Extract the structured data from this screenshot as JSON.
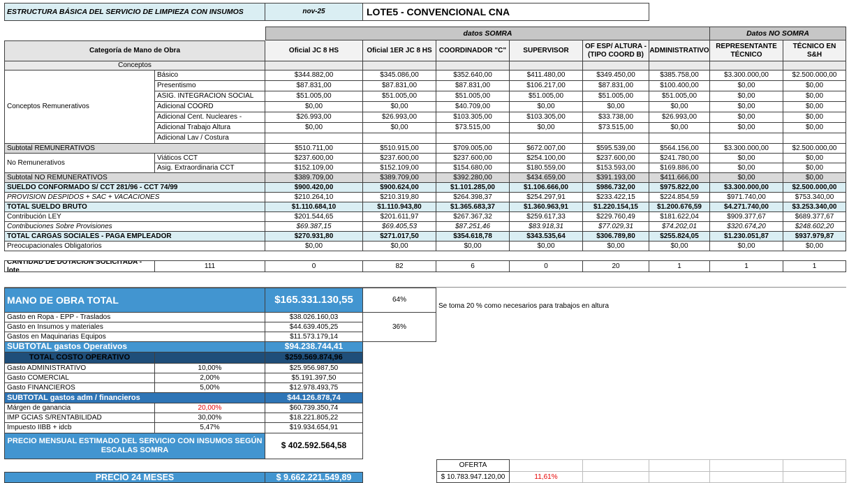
{
  "title_bar": {
    "title": "ESTRUCTURA BÁSICA DEL SERVICIO DE LIMPIEZA CON INSUMOS",
    "period": "nov-25",
    "lot": "LOTE5 - CONVENCIONAL CNA"
  },
  "bands": {
    "somra": "datos SOMRA",
    "no_somra": "Datos NO SOMRA"
  },
  "main_table": {
    "category_header": "Categoría de Mano de Obra",
    "conceptos_header": "Conceptos",
    "columns": [
      "Oficial JC 8 HS",
      "Oficial 1ER JC 8 HS",
      "COORDINADOR \"C\"",
      "SUPERVISOR",
      "OF ESP/ ALTURA - (TIPO COORD B)",
      "ADMINISTRATIVO",
      "REPRESENTANTE TÉCNICO",
      "TÉCNICO EN S&H"
    ],
    "groups": [
      {
        "label": "Conceptos Remunerativos",
        "rows": 7
      },
      {
        "label": "No Remunerativos",
        "rows": 2
      }
    ],
    "rows": [
      {
        "kind": "concept",
        "member": true,
        "label": "Básico",
        "values": [
          "$344.882,00",
          "$345.086,00",
          "$352.640,00",
          "$411.480,00",
          "$349.450,00",
          "$385.758,00",
          "$3.300.000,00",
          "$2.500.000,00"
        ]
      },
      {
        "kind": "concept",
        "member": true,
        "label": "Presentismo",
        "values": [
          "$87.831,00",
          "$87.831,00",
          "$87.831,00",
          "$106.217,00",
          "$87.831,00",
          "$100.400,00",
          "$0,00",
          "$0,00"
        ]
      },
      {
        "kind": "concept",
        "member": true,
        "label": "ASIG. INTEGRACION SOCIAL",
        "values": [
          "$51.005,00",
          "$51.005,00",
          "$51.005,00",
          "$51.005,00",
          "$51.005,00",
          "$51.005,00",
          "$0,00",
          "$0,00"
        ]
      },
      {
        "kind": "concept",
        "member": true,
        "label": "Adicional  COORD",
        "values": [
          "$0,00",
          "$0,00",
          "$40.709,00",
          "$0,00",
          "$0,00",
          "$0,00",
          "$0,00",
          "$0,00"
        ]
      },
      {
        "kind": "concept",
        "member": true,
        "label": "Adicional  Cent. Nucleares -",
        "values": [
          "$26.993,00",
          "$26.993,00",
          "$103.305,00",
          "$103.305,00",
          "$33.738,00",
          "$26.993,00",
          "$0,00",
          "$0,00"
        ]
      },
      {
        "kind": "concept",
        "member": true,
        "label": "Adicional Trabajo Altura",
        "values": [
          "$0,00",
          "$0,00",
          "$73.515,00",
          "$0,00",
          "$73.515,00",
          "$0,00",
          "$0,00",
          "$0,00"
        ]
      },
      {
        "kind": "concept",
        "member": true,
        "label": "Adicional Lav / Costura",
        "values": [
          "",
          "",
          "",
          "",
          "",
          "",
          "",
          ""
        ]
      },
      {
        "kind": "subtotal",
        "label": "Subtotal REMUNERATIVOS",
        "values": [
          "$510.711,00",
          "$510.915,00",
          "$709.005,00",
          "$672.007,00",
          "$595.539,00",
          "$564.156,00",
          "$3.300.000,00",
          "$2.500.000,00"
        ]
      },
      {
        "kind": "concept",
        "member": true,
        "label": "Viáticos CCT",
        "values": [
          "$237.600,00",
          "$237.600,00",
          "$237.600,00",
          "$254.100,00",
          "$237.600,00",
          "$241.780,00",
          "$0,00",
          "$0,00"
        ]
      },
      {
        "kind": "concept",
        "member": true,
        "label": "Asig. Extraordinaria CCT",
        "values": [
          "$152.109,00",
          "$152.109,00",
          "$154.680,00",
          "$180.559,00",
          "$153.593,00",
          "$169.886,00",
          "$0,00",
          "$0,00"
        ]
      },
      {
        "kind": "subtotal-shaded",
        "label": "Subtotal NO REMUNERATIVOS",
        "values": [
          "$389.709,00",
          "$389.709,00",
          "$392.280,00",
          "$434.659,00",
          "$391.193,00",
          "$411.666,00",
          "$0,00",
          "$0,00"
        ]
      },
      {
        "kind": "total-blue",
        "label": "SUELDO CONFORMADO S/ CCT 281/96 - CCT 74/99",
        "values": [
          "$900.420,00",
          "$900.624,00",
          "$1.101.285,00",
          "$1.106.666,00",
          "$986.732,00",
          "$975.822,00",
          "$3.300.000,00",
          "$2.500.000,00"
        ]
      },
      {
        "kind": "italic-label",
        "label": "PROVISION DESPIDOS + SAC + VACACIONES",
        "values": [
          "$210.264,10",
          "$210.319,80",
          "$264.398,37",
          "$254.297,91",
          "$233.422,15",
          "$224.854,59",
          "$971.740,00",
          "$753.340,00"
        ]
      },
      {
        "kind": "total-blue",
        "label": "TOTAL SUELDO BRUTO",
        "values": [
          "$1.110.684,10",
          "$1.110.943,80",
          "$1.365.683,37",
          "$1.360.963,91",
          "$1.220.154,15",
          "$1.200.676,59",
          "$4.271.740,00",
          "$3.253.340,00"
        ]
      },
      {
        "kind": "plain",
        "label": "Contribución LEY",
        "values": [
          "$201.544,65",
          "$201.611,97",
          "$267.367,32",
          "$259.617,33",
          "$229.760,49",
          "$181.622,04",
          "$909.377,67",
          "$689.377,67"
        ]
      },
      {
        "kind": "italic-both",
        "label": "Contribuciones Sobre Provisiones",
        "values": [
          "$69.387,15",
          "$69.405,53",
          "$87.251,46",
          "$83.918,31",
          "$77.029,31",
          "$74.202,01",
          "$320.674,20",
          "$248.602,20"
        ]
      },
      {
        "kind": "total-blue",
        "label": "TOTAL CARGAS SOCIALES - PAGA EMPLEADOR",
        "values": [
          "$270.931,80",
          "$271.017,50",
          "$354.618,78",
          "$343.535,64",
          "$306.789,80",
          "$255.824,05",
          "$1.230.051,87",
          "$937.979,87"
        ]
      },
      {
        "kind": "plain",
        "label": "Preocupacionales Obligatorios",
        "values": [
          "$0,00",
          "$0,00",
          "$0,00",
          "$0,00",
          "$0,00",
          "$0,00",
          "$0,00",
          "$0,00"
        ]
      }
    ],
    "dotacion": {
      "label": "CANTIDAD DE DOTACION SOLICITADA - lote",
      "total": "111",
      "values": [
        "0",
        "82",
        "6",
        "0",
        "20",
        "1",
        "1",
        "1"
      ]
    }
  },
  "costs": {
    "rows": [
      {
        "kind": "mano",
        "label": "MANO DE OBRA TOTAL",
        "value": "$165.331.130,55"
      },
      {
        "kind": "gasto",
        "label": "Gasto en Ropa - EPP - Traslados",
        "value": "$38.026.160,03"
      },
      {
        "kind": "gasto",
        "label": "Gasto en  Insumos y materiales",
        "value": "$44.639.405,25"
      },
      {
        "kind": "gasto",
        "label": "Gastos en Maquinarias Equipos",
        "value": "$11.573.179,14"
      },
      {
        "kind": "sub-blue",
        "label": "SUBTOTAL gastos Operativos",
        "value": "$94.238.744,41"
      },
      {
        "kind": "total-dark",
        "label": "TOTAL COSTO OPERATIVO",
        "value": "$259.569.874,96"
      },
      {
        "kind": "pct-row",
        "label": "Gasto ADMINISTRATIVO",
        "pct": "10,00%",
        "value": "$25.956.987,50"
      },
      {
        "kind": "pct-row",
        "label": "Gasto COMERCIAL",
        "pct": "2,00%",
        "value": "$5.191.397,50"
      },
      {
        "kind": "pct-row",
        "label": "Gasto FINANCIEROS",
        "pct": "5,00%",
        "value": "$12.978.493,75"
      },
      {
        "kind": "sub-blue2",
        "label": "SUBTOTAL gastos adm / financieros",
        "value": "$44.126.878,74"
      },
      {
        "kind": "pct-row-red",
        "label": "Márgen de ganancia",
        "pct": "20,00%",
        "value": "$60.739.350,74"
      },
      {
        "kind": "pct-row",
        "label": "IMP GCIAS S/RENTABILIDAD",
        "pct": "30,00%",
        "value": "$18.221.805,22"
      },
      {
        "kind": "pct-row",
        "label": "Impuesto  IIBB + idcb",
        "pct": "5,47%",
        "value": "$19.934.654,91"
      },
      {
        "kind": "precio-mensual",
        "label": "PRECIO MENSUAL ESTIMADO DEL SERVICIO CON INSUMOS SEGÚN ESCALAS SOMRA",
        "value": "$ 402.592.564,58"
      },
      {
        "kind": "precio24",
        "label": "PRECIO 24 MESES",
        "value": "$ 9.662.221.549,89"
      }
    ]
  },
  "notes": {
    "altura": "Se toma 20 % como necesarios para trabajos en altura",
    "pct_mano": "64%",
    "pct_gastos": "36%"
  },
  "oferta": {
    "label": "OFERTA",
    "value": "$  10.783.947.120,00",
    "diff_pct": "11,61%"
  }
}
